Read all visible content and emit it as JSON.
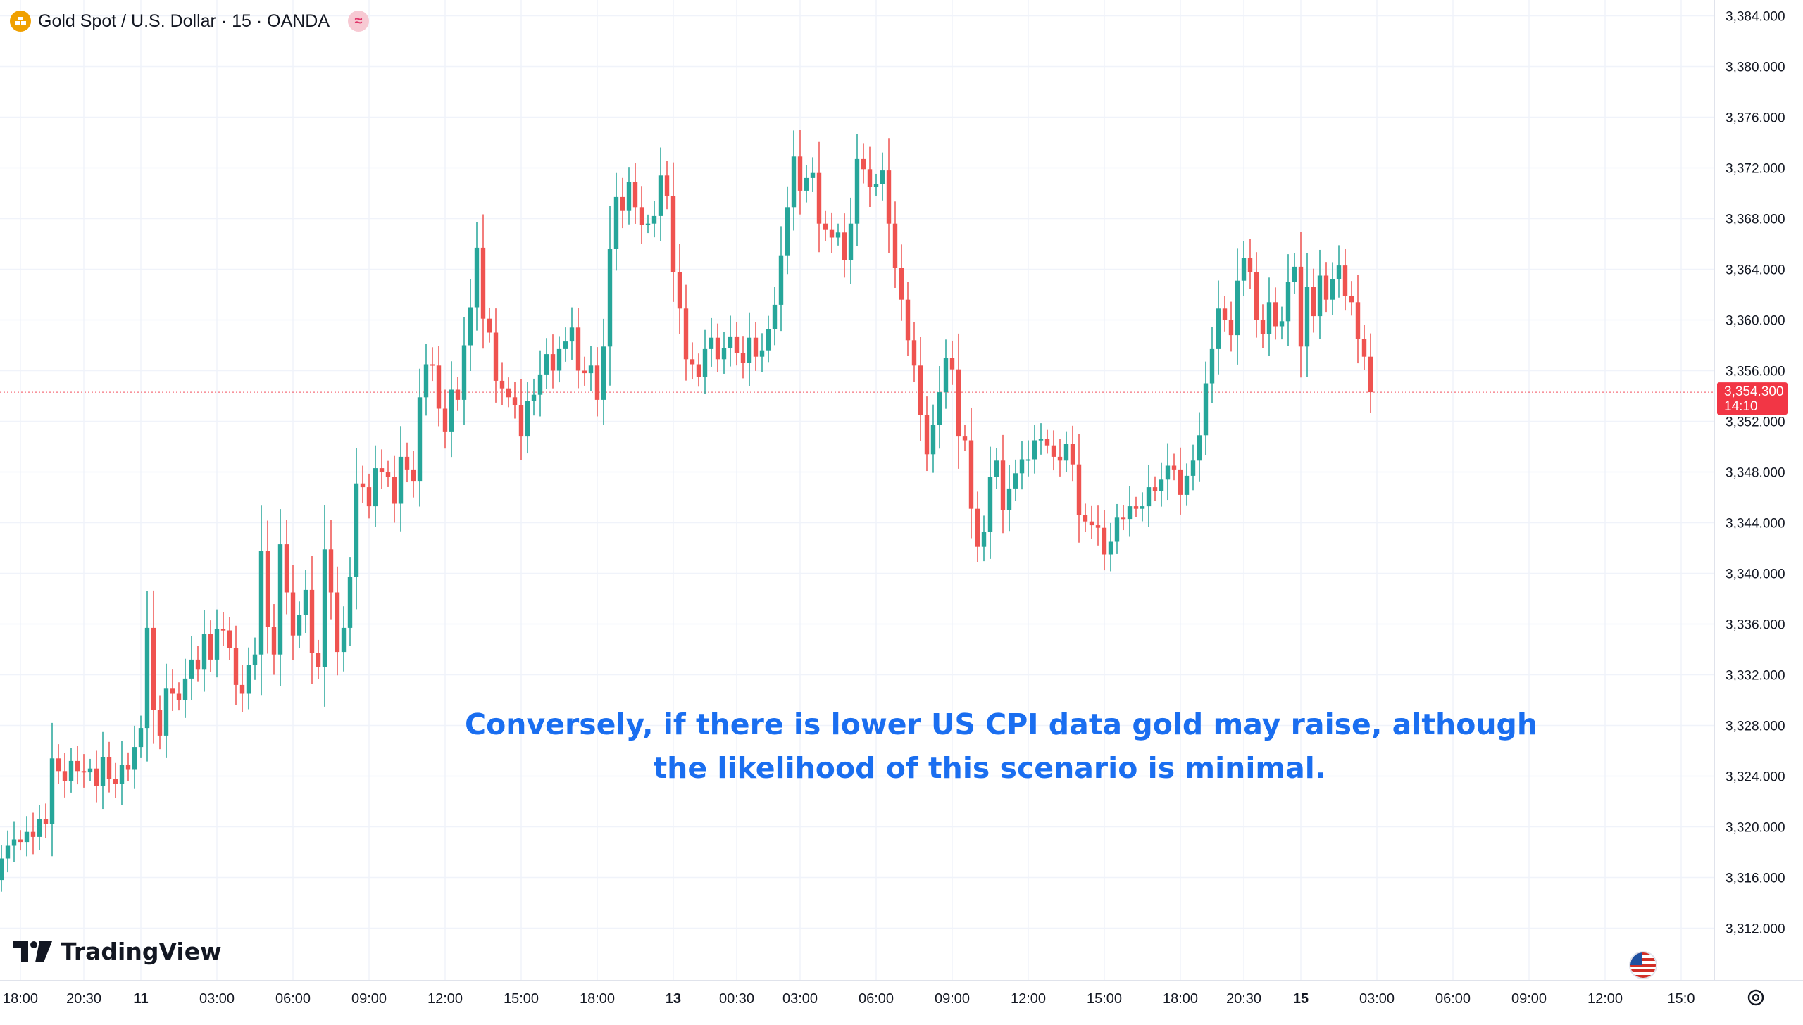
{
  "header": {
    "symbol_title": "Gold Spot / U.S. Dollar · 15 · OANDA",
    "symbol_icon": "gold-coin-icon",
    "indicator_badge": "≈"
  },
  "annotation": {
    "line1": "Conversely, if there is lower US CPI data gold may raise, although",
    "line2": "the likelihood of this scenario is minimal."
  },
  "branding": {
    "name": "TradingView",
    "logo": "tradingview-logo-icon"
  },
  "last_price": {
    "value": "3,354.300",
    "countdown": "14:10"
  },
  "colors": {
    "up": "#26a69a",
    "down": "#ef5350",
    "annotation": "#1a6ef0",
    "grid": "#f0f3fa",
    "axis_text": "#131722",
    "last_price_bg": "#f23645"
  },
  "chart_data": {
    "type": "candlestick",
    "title": "Gold Spot / U.S. Dollar · 15 · OANDA",
    "interval": "15",
    "ylim": [
      3310,
      3385
    ],
    "y_ticks": [
      3384,
      3380,
      3376,
      3372,
      3368,
      3364,
      3360,
      3356,
      3352,
      3348,
      3344,
      3340,
      3336,
      3332,
      3328,
      3324,
      3320,
      3316,
      3312
    ],
    "y_tick_labels": [
      "3,384.000",
      "3,380.000",
      "3,376.000",
      "3,372.000",
      "3,368.000",
      "3,364.000",
      "3,360.000",
      "3,356.000",
      "3,352.000",
      "3,348.000",
      "3,344.000",
      "3,340.000",
      "3,336.000",
      "3,332.000",
      "3,328.000",
      "3,324.000",
      "3,320.000",
      "3,316.000",
      "3,312.000"
    ],
    "x_ticks": [
      {
        "label": "18:00",
        "bar": 3,
        "bold": false
      },
      {
        "label": "20:30",
        "bar": 13,
        "bold": false
      },
      {
        "label": "11",
        "bar": 22,
        "bold": true
      },
      {
        "label": "03:00",
        "bar": 34,
        "bold": false
      },
      {
        "label": "06:00",
        "bar": 46,
        "bold": false
      },
      {
        "label": "09:00",
        "bar": 58,
        "bold": false
      },
      {
        "label": "12:00",
        "bar": 70,
        "bold": false
      },
      {
        "label": "15:00",
        "bar": 82,
        "bold": false
      },
      {
        "label": "18:00",
        "bar": 94,
        "bold": false
      },
      {
        "label": "13",
        "bar": 106,
        "bold": true
      },
      {
        "label": "00:30",
        "bar": 116,
        "bold": false
      },
      {
        "label": "03:00",
        "bar": 126,
        "bold": false
      },
      {
        "label": "06:00",
        "bar": 138,
        "bold": false
      },
      {
        "label": "09:00",
        "bar": 150,
        "bold": false
      },
      {
        "label": "12:00",
        "bar": 162,
        "bold": false
      },
      {
        "label": "15:00",
        "bar": 174,
        "bold": false
      },
      {
        "label": "18:00",
        "bar": 186,
        "bold": false
      },
      {
        "label": "20:30",
        "bar": 196,
        "bold": false
      },
      {
        "label": "15",
        "bar": 205,
        "bold": true
      },
      {
        "label": "03:00",
        "bar": 217,
        "bold": false
      },
      {
        "label": "06:00",
        "bar": 229,
        "bold": false
      },
      {
        "label": "09:00",
        "bar": 241,
        "bold": false
      },
      {
        "label": "12:00",
        "bar": 253,
        "bold": false
      },
      {
        "label": "15:0",
        "bar": 265,
        "bold": false
      }
    ],
    "last_price": 3354.3,
    "close": [
      3317.5,
      3318.5,
      3319.0,
      3318.8,
      3319.6,
      3319.2,
      3320.6,
      3320.2,
      3325.4,
      3324.4,
      3323.6,
      3325.2,
      3324.4,
      3324.3,
      3324.6,
      3323.2,
      3325.5,
      3323.8,
      3323.4,
      3324.9,
      3324.5,
      3326.3,
      3327.8,
      3335.7,
      3329.2,
      3327.2,
      3330.9,
      3330.5,
      3330.0,
      3331.7,
      3333.2,
      3332.4,
      3335.2,
      3333.2,
      3335.6,
      3335.5,
      3334.1,
      3331.2,
      3330.5,
      3332.8,
      3333.6,
      3341.8,
      3335.8,
      3333.6,
      3342.3,
      3338.5,
      3335.1,
      3336.7,
      3338.7,
      3333.7,
      3332.6,
      3341.9,
      3338.5,
      3333.8,
      3335.7,
      3339.7,
      3347.1,
      3346.8,
      3345.3,
      3348.3,
      3348.0,
      3347.6,
      3345.5,
      3349.2,
      3348.2,
      3347.3,
      3353.9,
      3356.5,
      3356.4,
      3353.0,
      3351.2,
      3354.5,
      3353.7,
      3358.0,
      3361.0,
      3365.7,
      3360.1,
      3359.0,
      3355.2,
      3354.6,
      3353.9,
      3353.3,
      3350.8,
      3353.6,
      3354.1,
      3355.7,
      3357.3,
      3356.0,
      3357.7,
      3358.3,
      3359.4,
      3356.0,
      3355.8,
      3356.4,
      3353.7,
      3357.9,
      3365.6,
      3369.7,
      3368.6,
      3370.9,
      3368.9,
      3367.5,
      3367.6,
      3368.2,
      3371.4,
      3369.8,
      3363.8,
      3360.9,
      3356.9,
      3356.5,
      3355.5,
      3357.7,
      3358.6,
      3356.9,
      3357.8,
      3358.7,
      3357.4,
      3356.6,
      3358.6,
      3357.1,
      3357.6,
      3359.3,
      3361.2,
      3365.1,
      3368.9,
      3372.9,
      3370.2,
      3371.2,
      3371.6,
      3367.6,
      3367.1,
      3366.5,
      3366.9,
      3364.7,
      3367.6,
      3372.7,
      3371.9,
      3370.5,
      3370.7,
      3371.8,
      3367.6,
      3364.1,
      3361.6,
      3358.4,
      3356.4,
      3352.5,
      3349.4,
      3351.7,
      3354.3,
      3357.0,
      3356.1,
      3350.8,
      3350.5,
      3345.1,
      3342.1,
      3343.3,
      3347.6,
      3348.9,
      3345.0,
      3346.7,
      3347.9,
      3349.0,
      3349.0,
      3350.5,
      3350.6,
      3350.1,
      3349.2,
      3348.9,
      3350.2,
      3348.6,
      3344.6,
      3344.1,
      3343.8,
      3343.6,
      3341.5,
      3342.5,
      3344.4,
      3344.3,
      3345.3,
      3345.1,
      3345.3,
      3346.8,
      3346.5,
      3347.4,
      3348.5,
      3348.2,
      3346.2,
      3347.7,
      3348.9,
      3350.9,
      3355.0,
      3357.7,
      3360.9,
      3360.0,
      3358.8,
      3363.1,
      3364.9,
      3363.8,
      3360.0,
      3358.9,
      3361.4,
      3359.5,
      3359.9,
      3363.0,
      3364.2,
      3357.9,
      3362.6,
      3360.3,
      3363.5,
      3361.6,
      3363.2,
      3364.3,
      3361.9,
      3361.4,
      3358.5,
      3357.1,
      3354.3
    ],
    "open": [
      3315.8,
      3317.5,
      3318.5,
      3319.0,
      3318.8,
      3319.6,
      3319.2,
      3320.6,
      3320.2,
      3325.4,
      3324.4,
      3323.6,
      3325.2,
      3324.4,
      3324.3,
      3324.6,
      3323.2,
      3325.5,
      3323.8,
      3323.4,
      3324.9,
      3324.5,
      3326.3,
      3327.8,
      3335.7,
      3329.2,
      3327.2,
      3330.9,
      3330.5,
      3330.0,
      3331.7,
      3333.2,
      3332.4,
      3335.2,
      3333.2,
      3335.6,
      3335.5,
      3334.1,
      3331.2,
      3330.5,
      3332.8,
      3333.6,
      3341.8,
      3335.8,
      3333.6,
      3342.3,
      3338.5,
      3335.1,
      3336.7,
      3338.7,
      3333.7,
      3332.6,
      3341.9,
      3338.5,
      3333.8,
      3335.7,
      3339.7,
      3347.1,
      3346.8,
      3345.3,
      3348.3,
      3348.0,
      3347.6,
      3345.5,
      3349.2,
      3348.2,
      3347.3,
      3353.9,
      3356.5,
      3356.4,
      3353.0,
      3351.2,
      3354.5,
      3353.7,
      3358.0,
      3361.0,
      3365.7,
      3360.1,
      3359.0,
      3355.2,
      3354.6,
      3353.9,
      3353.3,
      3350.8,
      3353.6,
      3354.1,
      3355.7,
      3357.3,
      3356.0,
      3357.7,
      3358.3,
      3359.4,
      3356.0,
      3355.8,
      3356.4,
      3353.7,
      3357.9,
      3365.6,
      3369.7,
      3368.6,
      3370.9,
      3368.9,
      3367.5,
      3367.6,
      3368.2,
      3371.4,
      3369.8,
      3363.8,
      3360.9,
      3356.9,
      3356.5,
      3355.5,
      3357.7,
      3358.6,
      3356.9,
      3357.8,
      3358.7,
      3357.4,
      3356.6,
      3358.6,
      3357.1,
      3357.6,
      3359.3,
      3361.2,
      3365.1,
      3368.9,
      3372.9,
      3370.2,
      3371.2,
      3371.6,
      3367.6,
      3367.1,
      3366.5,
      3366.9,
      3364.7,
      3367.6,
      3372.7,
      3371.9,
      3370.5,
      3370.7,
      3371.8,
      3367.6,
      3364.1,
      3361.6,
      3358.4,
      3356.4,
      3352.5,
      3349.4,
      3351.7,
      3354.3,
      3357.0,
      3356.1,
      3350.8,
      3350.5,
      3345.1,
      3342.1,
      3343.3,
      3347.6,
      3348.9,
      3345.0,
      3346.7,
      3347.9,
      3349.0,
      3349.0,
      3350.5,
      3350.6,
      3350.1,
      3349.2,
      3348.9,
      3350.2,
      3348.6,
      3344.6,
      3344.1,
      3343.8,
      3343.6,
      3341.5,
      3342.5,
      3344.4,
      3344.3,
      3345.3,
      3345.1,
      3345.3,
      3346.8,
      3346.5,
      3347.4,
      3348.5,
      3348.2,
      3346.2,
      3347.7,
      3348.9,
      3350.9,
      3355.0,
      3357.7,
      3360.9,
      3360.0,
      3358.8,
      3363.1,
      3364.9,
      3363.8,
      3360.0,
      3358.9,
      3361.4,
      3359.5,
      3359.9,
      3363.0,
      3364.2,
      3357.9,
      3362.6,
      3360.3,
      3363.5,
      3361.6,
      3363.2,
      3364.3,
      3361.9,
      3361.4,
      3358.5,
      3357.1
    ]
  }
}
